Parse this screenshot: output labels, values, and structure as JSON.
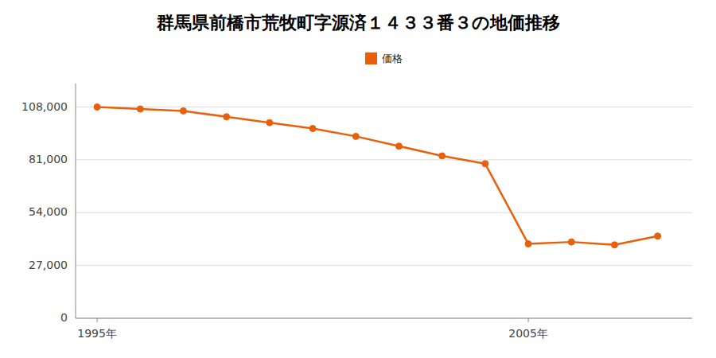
{
  "chart_data": {
    "type": "line",
    "title": "群馬県前橋市荒牧町字源済１４３３番３の地価推移",
    "x": [
      1995,
      1996,
      1997,
      1998,
      1999,
      2000,
      2001,
      2002,
      2003,
      2004,
      2005,
      2006,
      2007,
      2008
    ],
    "series": [
      {
        "name": "価格",
        "color": "#e8610a",
        "marker": "circle",
        "values": [
          108000,
          107000,
          106000,
          103000,
          100000,
          97000,
          93000,
          88000,
          83000,
          79000,
          38000,
          39000,
          37500,
          42000
        ]
      }
    ],
    "xlim": [
      1994.5,
      2008.8
    ],
    "xticks": [
      {
        "value": 1995,
        "label": "1995年"
      },
      {
        "value": 2005,
        "label": "2005年"
      }
    ],
    "ylim": [
      0,
      120000
    ],
    "yticks": [
      0,
      {
        "value": 27000,
        "label": "27,000"
      },
      {
        "value": 54000,
        "label": "54,000"
      },
      {
        "value": 81000,
        "label": "81,000"
      },
      {
        "value": 108000,
        "label": "108,000"
      }
    ],
    "grid": true,
    "legend": "top"
  }
}
